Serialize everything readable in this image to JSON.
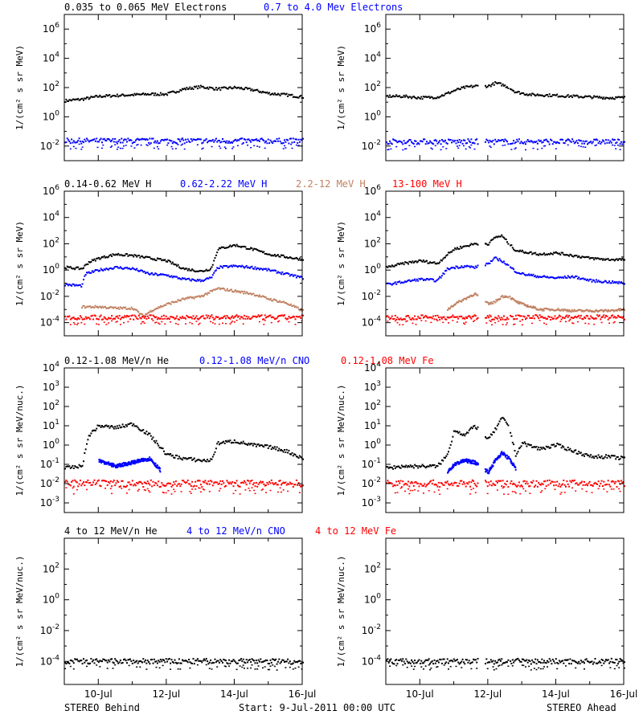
{
  "footer": {
    "left": "STEREO Behind",
    "center": "Start:  9-Jul-2011 00:00 UTC",
    "right": "STEREO Ahead"
  },
  "x_axis": {
    "day_range": [
      9,
      16
    ],
    "tick_labels": [
      "10-Jul",
      "12-Jul",
      "14-Jul",
      "16-Jul"
    ],
    "tick_days": [
      10,
      12,
      14,
      16
    ]
  },
  "chart_data": [
    {
      "type": "scatter",
      "row": 1,
      "legend": [
        {
          "name": "0.035 to 0.065 MeV Electrons",
          "color": "#000000"
        },
        {
          "name": "0.7 to 4.0 Mev Electrons",
          "color": "#0000ff"
        }
      ],
      "ylabel": "1/(cm² s sr MeV)",
      "log_ylim": [
        -3,
        7
      ],
      "ytick_exponents": [
        -2,
        0,
        2,
        4,
        6
      ],
      "behind": {
        "series": [
          {
            "color": "#000000",
            "x": [
              9,
              9.5,
              10,
              10.5,
              11,
              11.5,
              12,
              12.5,
              13,
              13.5,
              14,
              14.5,
              15,
              15.5,
              16
            ],
            "log_y": [
              1.1,
              1.2,
              1.4,
              1.45,
              1.5,
              1.55,
              1.55,
              1.9,
              2.05,
              1.9,
              2.0,
              1.85,
              1.6,
              1.5,
              1.35
            ]
          },
          {
            "color": "#0000ff",
            "x": [
              9,
              16
            ],
            "log_y": [
              -1.65,
              -1.65
            ]
          }
        ]
      },
      "ahead": {
        "gaps": [
          [
            11.7,
            11.9
          ],
          [
            12.6,
            12.62
          ]
        ],
        "series": [
          {
            "color": "#000000",
            "x": [
              9,
              9.5,
              10,
              10.5,
              10.8,
              11,
              11.3,
              11.6,
              12,
              12.2,
              12.4,
              12.6,
              12.8,
              13,
              13.3,
              13.5,
              14,
              14.5,
              15,
              15.5,
              16
            ],
            "log_y": [
              1.4,
              1.4,
              1.3,
              1.35,
              1.6,
              1.8,
              2.0,
              2.1,
              2.1,
              2.3,
              2.2,
              2.0,
              1.7,
              1.6,
              1.5,
              1.5,
              1.45,
              1.4,
              1.35,
              1.3,
              1.3
            ]
          },
          {
            "color": "#0000ff",
            "x": [
              9,
              16
            ],
            "log_y": [
              -1.7,
              -1.7
            ]
          }
        ]
      }
    },
    {
      "type": "scatter",
      "row": 2,
      "legend": [
        {
          "name": "0.14-0.62 MeV H",
          "color": "#000000"
        },
        {
          "name": "0.62-2.22 MeV H",
          "color": "#0000ff"
        },
        {
          "name": "2.2-12 MeV H",
          "color": "#c08060"
        },
        {
          "name": "13-100 MeV H",
          "color": "#ff0000"
        }
      ],
      "ylabel": "1/(cm² s sr MeV)",
      "log_ylim": [
        -5,
        6
      ],
      "ytick_exponents": [
        -4,
        -2,
        0,
        2,
        4,
        6
      ],
      "behind": {
        "series": [
          {
            "color": "#000000",
            "x": [
              9,
              9.5,
              9.7,
              10,
              10.5,
              11,
              11.5,
              12,
              12.5,
              13,
              13.3,
              13.5,
              14,
              14.5,
              15,
              15.5,
              16
            ],
            "log_y": [
              0.2,
              0.1,
              0.6,
              0.9,
              1.2,
              1.1,
              0.9,
              0.7,
              0.1,
              -0.1,
              0.1,
              1.6,
              1.9,
              1.6,
              1.2,
              1.0,
              0.8
            ]
          },
          {
            "color": "#0000ff",
            "x": [
              9,
              9.5,
              9.6,
              10,
              10.5,
              11,
              11.5,
              12,
              12.5,
              13,
              13.3,
              13.5,
              14,
              14.5,
              15,
              15.5,
              16
            ],
            "log_y": [
              -1.1,
              -1.2,
              -0.3,
              0.0,
              0.2,
              0.1,
              -0.3,
              -0.4,
              -0.7,
              -0.8,
              -0.6,
              0.2,
              0.3,
              0.2,
              0.0,
              -0.3,
              -0.6
            ]
          },
          {
            "color": "#c08060",
            "x": [
              9.5,
              10,
              10.5,
              11,
              11.3,
              11.6,
              12,
              12.5,
              13,
              13.5,
              14,
              14.5,
              15,
              15.5,
              16
            ],
            "log_y": [
              -2.8,
              -2.8,
              -2.9,
              -2.9,
              -3.5,
              -3.0,
              -2.6,
              -2.2,
              -2.0,
              -1.4,
              -1.6,
              -1.8,
              -2.2,
              -2.5,
              -3.1
            ]
          },
          {
            "color": "#ff0000",
            "x": [
              9,
              16
            ],
            "log_y": [
              -3.6,
              -3.6
            ]
          }
        ]
      },
      "ahead": {
        "gaps": [
          [
            11.7,
            11.9
          ],
          [
            12.6,
            12.62
          ]
        ],
        "series": [
          {
            "color": "#000000",
            "x": [
              9,
              9.5,
              10,
              10.5,
              10.8,
              11,
              11.3,
              11.6,
              12,
              12.2,
              12.4,
              12.6,
              12.8,
              13,
              13.5,
              14,
              14.5,
              15,
              15.5,
              16
            ],
            "log_y": [
              0.2,
              0.5,
              0.7,
              0.5,
              1.2,
              1.6,
              1.8,
              2.0,
              2.0,
              2.5,
              2.6,
              2.0,
              1.5,
              1.4,
              1.2,
              1.3,
              1.1,
              0.9,
              0.8,
              0.8
            ]
          },
          {
            "color": "#0000ff",
            "x": [
              9,
              9.5,
              10,
              10.5,
              10.8,
              11,
              11.3,
              11.6,
              12,
              12.2,
              12.4,
              12.6,
              12.8,
              13,
              13.5,
              14,
              14.5,
              15,
              15.5,
              16
            ],
            "log_y": [
              -1.1,
              -0.9,
              -0.7,
              -0.8,
              0.1,
              0.2,
              0.3,
              0.2,
              0.5,
              0.9,
              0.7,
              0.3,
              -0.1,
              -0.3,
              -0.5,
              -0.6,
              -0.5,
              -0.8,
              -0.9,
              -1.0
            ]
          },
          {
            "color": "#c08060",
            "x": [
              10.8,
              11,
              11.3,
              11.6,
              12,
              12.2,
              12.4,
              12.6,
              12.8,
              13,
              13.5,
              14,
              14.5,
              15,
              15.5,
              16
            ],
            "log_y": [
              -3.0,
              -2.6,
              -2.2,
              -1.8,
              -2.6,
              -2.4,
              -2.0,
              -2.0,
              -2.4,
              -2.6,
              -3.0,
              -3.0,
              -3.1,
              -3.1,
              -3.1,
              -3.0
            ]
          },
          {
            "color": "#ff0000",
            "x": [
              9,
              16
            ],
            "log_y": [
              -3.6,
              -3.6
            ]
          }
        ]
      }
    },
    {
      "type": "scatter",
      "row": 3,
      "legend": [
        {
          "name": "0.12-1.08 MeV/n He",
          "color": "#000000"
        },
        {
          "name": "0.12-1.08 MeV/n CNO",
          "color": "#0000ff"
        },
        {
          "name": "0.12-1.08 MeV Fe",
          "color": "#ff0000"
        }
      ],
      "ylabel": "1/(cm² s sr MeV/nuc.)",
      "log_ylim": [
        -3.5,
        4
      ],
      "ytick_exponents": [
        -3,
        -2,
        -1,
        0,
        1,
        2,
        3,
        4
      ],
      "behind": {
        "series": [
          {
            "color": "#000000",
            "x": [
              9,
              9.5,
              9.7,
              10,
              10.5,
              11,
              11.5,
              12,
              12.5,
              13,
              13.3,
              13.5,
              14,
              14.5,
              15,
              15.5,
              16
            ],
            "log_y": [
              -1.2,
              -1.1,
              0.5,
              1.0,
              0.9,
              1.1,
              0.5,
              -0.5,
              -0.7,
              -0.8,
              -0.8,
              0.1,
              0.2,
              0.0,
              -0.1,
              -0.3,
              -0.7
            ]
          },
          {
            "color": "#0000ff",
            "x": [
              10,
              10.5,
              11,
              11.5,
              11.8
            ],
            "log_y": [
              -0.8,
              -1.1,
              -0.9,
              -0.7,
              -1.3
            ]
          },
          {
            "color": "#ff0000",
            "x": [
              9,
              16
            ],
            "log_y": [
              -2.0,
              -2.0
            ]
          }
        ]
      },
      "ahead": {
        "gaps": [
          [
            11.7,
            11.9
          ],
          [
            12.6,
            12.62
          ]
        ],
        "series": [
          {
            "color": "#000000",
            "x": [
              9,
              9.5,
              10,
              10.5,
              10.8,
              11,
              11.3,
              11.6,
              12,
              12.2,
              12.4,
              12.6,
              12.8,
              13,
              13.5,
              14,
              14.5,
              15,
              15.5,
              16
            ],
            "log_y": [
              -1.2,
              -1.1,
              -1.1,
              -1.1,
              -0.5,
              0.8,
              0.5,
              1.0,
              0.3,
              0.8,
              1.4,
              1.0,
              -0.5,
              0.1,
              -0.2,
              0.0,
              -0.3,
              -0.6,
              -0.6,
              -0.7
            ]
          },
          {
            "color": "#0000ff",
            "x": [
              10.8,
              11,
              11.3,
              11.6,
              12,
              12.2,
              12.4,
              12.6,
              12.8
            ],
            "log_y": [
              -1.4,
              -1.0,
              -0.8,
              -0.9,
              -1.4,
              -0.8,
              -0.4,
              -0.7,
              -1.2
            ]
          },
          {
            "color": "#ff0000",
            "x": [
              9,
              16
            ],
            "log_y": [
              -2.0,
              -2.0
            ]
          }
        ]
      }
    },
    {
      "type": "scatter",
      "row": 4,
      "legend": [
        {
          "name": "4 to 12 MeV/n He",
          "color": "#000000"
        },
        {
          "name": "4 to 12 MeV/n CNO",
          "color": "#0000ff"
        },
        {
          "name": "4 to 12 MeV Fe",
          "color": "#ff0000"
        }
      ],
      "ylabel": "1/(cm² s sr MeV/nuc.)",
      "log_ylim": [
        -5.5,
        4
      ],
      "ytick_exponents": [
        -4,
        -2,
        0,
        2
      ],
      "behind": {
        "series": [
          {
            "color": "#000000",
            "x": [
              9,
              16
            ],
            "log_y": [
              -4.0,
              -4.0
            ]
          }
        ]
      },
      "ahead": {
        "gaps": [
          [
            11.7,
            11.9
          ],
          [
            12.6,
            12.62
          ]
        ],
        "series": [
          {
            "color": "#000000",
            "x": [
              9,
              16
            ],
            "log_y": [
              -4.0,
              -4.0
            ]
          }
        ]
      }
    }
  ]
}
